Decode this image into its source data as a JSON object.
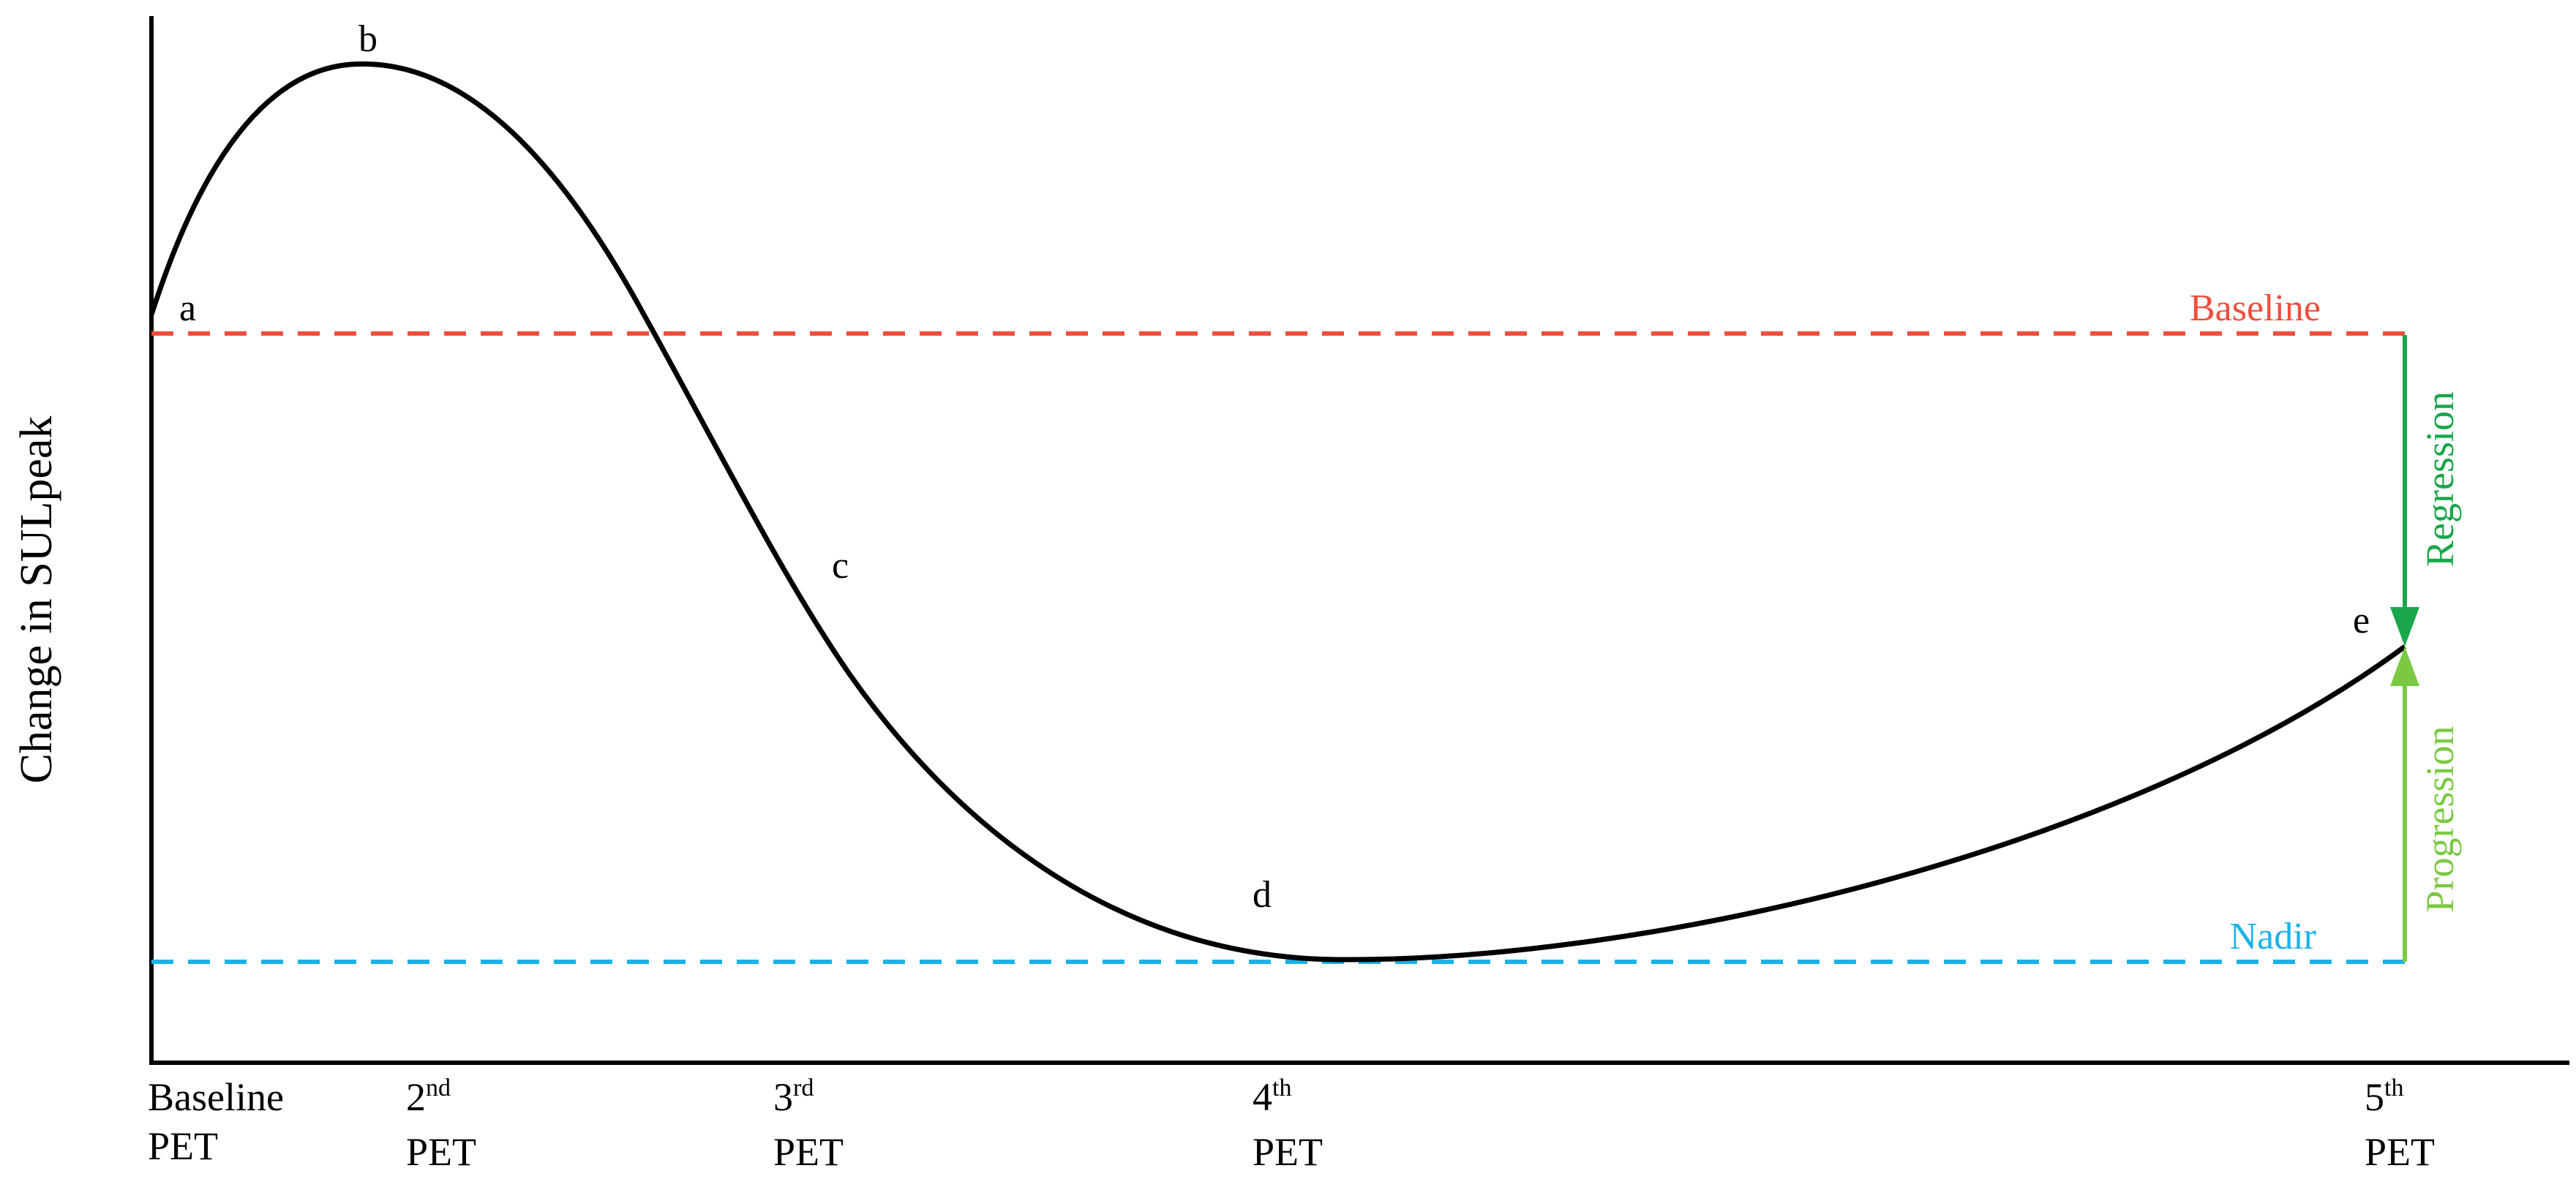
{
  "chart_data": {
    "type": "line",
    "ylabel": "Change in SULpeak",
    "x_ticks": [
      {
        "main": "Baseline",
        "sup": "",
        "second": "PET"
      },
      {
        "main": "2",
        "sup": "nd",
        "second": "PET"
      },
      {
        "main": "3",
        "sup": "rd",
        "second": "PET"
      },
      {
        "main": "4",
        "sup": "th",
        "second": "PET"
      },
      {
        "main": "5",
        "sup": "th",
        "second": "PET"
      }
    ],
    "points": [
      {
        "label": "a"
      },
      {
        "label": "b"
      },
      {
        "label": "c"
      },
      {
        "label": "d"
      },
      {
        "label": "e"
      }
    ],
    "reference_lines": {
      "baseline": {
        "label": "Baseline",
        "color": "#f04e3e"
      },
      "nadir": {
        "label": "Nadir",
        "color": "#1ab2e8"
      }
    },
    "arrows": {
      "regression": {
        "label": "Regression",
        "color": "#1aa64a"
      },
      "progression": {
        "label": "Progression",
        "color": "#7bc943"
      }
    },
    "curve_color": "#000000"
  }
}
